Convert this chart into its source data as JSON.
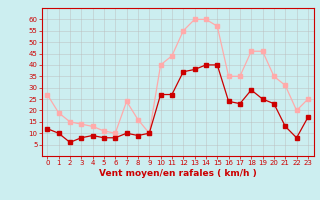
{
  "x": [
    0,
    1,
    2,
    3,
    4,
    5,
    6,
    7,
    8,
    9,
    10,
    11,
    12,
    13,
    14,
    15,
    16,
    17,
    18,
    19,
    20,
    21,
    22,
    23
  ],
  "wind_avg": [
    12,
    10,
    6,
    8,
    9,
    8,
    8,
    10,
    9,
    10,
    27,
    27,
    37,
    38,
    40,
    40,
    24,
    23,
    29,
    25,
    23,
    13,
    8,
    17
  ],
  "wind_gust": [
    27,
    19,
    15,
    14,
    13,
    11,
    10,
    24,
    16,
    10,
    40,
    44,
    55,
    60,
    60,
    57,
    35,
    35,
    46,
    46,
    35,
    31,
    20,
    25
  ],
  "xlabel": "Vent moyen/en rafales ( km/h )",
  "ylim_min": 0,
  "ylim_max": 65,
  "yticks": [
    5,
    10,
    15,
    20,
    25,
    30,
    35,
    40,
    45,
    50,
    55,
    60
  ],
  "bg_color": "#cceef0",
  "grid_color": "#bbbbbb",
  "line_color_avg": "#cc0000",
  "line_color_gust": "#ffaaaa",
  "marker_size": 2.2,
  "line_width": 0.9,
  "tick_fontsize": 5.0,
  "xlabel_fontsize": 6.5
}
